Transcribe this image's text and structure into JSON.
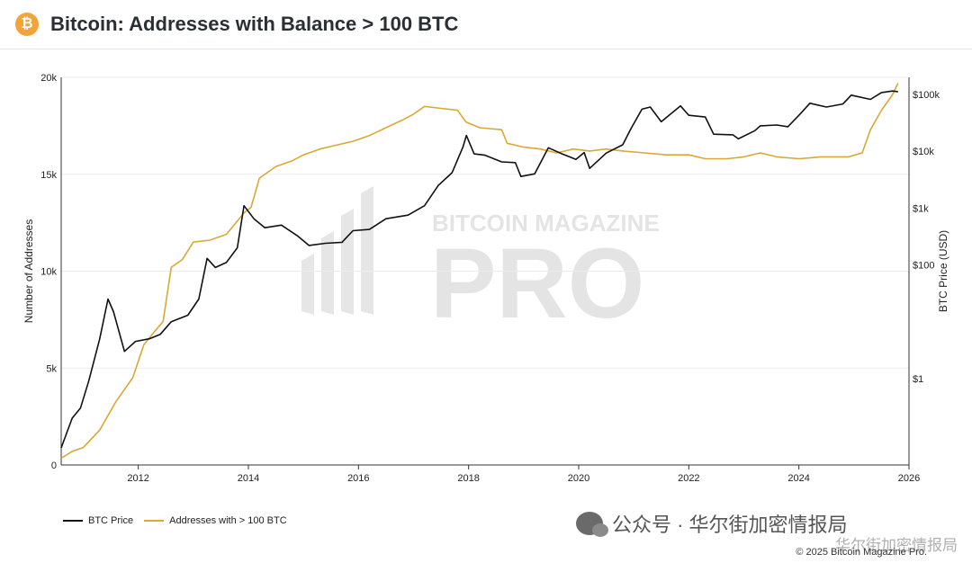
{
  "header": {
    "logo_symbol": "₿",
    "title": "Bitcoin: Addresses with Balance > 100 BTC"
  },
  "watermark": {
    "line1": "BITCOIN MAGAZINE",
    "line2": "PRO"
  },
  "footer": {
    "copyright": "© 2025 Bitcoin Magazine Pro.",
    "wechat_text": "公众号 · 华尔街加密情报局",
    "wechat_text_small": "华尔街加密情报局"
  },
  "chart_data": {
    "type": "line",
    "title": "Bitcoin: Addresses with Balance > 100 BTC",
    "xlabel": "",
    "ylabel": "Number of Addresses",
    "y2label": "BTC Price (USD)",
    "xlim": [
      2010.6,
      2026.0
    ],
    "x_ticks": [
      "2012",
      "2014",
      "2016",
      "2018",
      "2020",
      "2022",
      "2024",
      "2026"
    ],
    "x_tick_values": [
      2012,
      2014,
      2016,
      2018,
      2020,
      2022,
      2024,
      2026
    ],
    "ylim": [
      0,
      20000
    ],
    "y_ticks": [
      "0",
      "5k",
      "10k",
      "15k",
      "20k"
    ],
    "y_tick_values": [
      0,
      5000,
      10000,
      15000,
      20000
    ],
    "y2_scale": "log",
    "y2_ticks": [
      "$1",
      "$100",
      "$1k",
      "$10k",
      "$100k"
    ],
    "y2_tick_values": [
      1,
      100,
      1000,
      10000,
      100000
    ],
    "y2lim": [
      0.03,
      200000
    ],
    "grid": true,
    "legend_position": "bottom-left",
    "series": [
      {
        "name": "BTC Price",
        "axis": "right",
        "color": "#111111",
        "points": [
          [
            2010.6,
            0.06
          ],
          [
            2010.8,
            0.2
          ],
          [
            2010.95,
            0.3
          ],
          [
            2011.1,
            0.9
          ],
          [
            2011.3,
            5
          ],
          [
            2011.45,
            25
          ],
          [
            2011.55,
            15
          ],
          [
            2011.75,
            3
          ],
          [
            2011.95,
            4.5
          ],
          [
            2012.2,
            5
          ],
          [
            2012.4,
            6
          ],
          [
            2012.6,
            10
          ],
          [
            2012.9,
            13
          ],
          [
            2013.1,
            25
          ],
          [
            2013.25,
            130
          ],
          [
            2013.4,
            90
          ],
          [
            2013.6,
            110
          ],
          [
            2013.8,
            200
          ],
          [
            2013.92,
            1100
          ],
          [
            2014.1,
            650
          ],
          [
            2014.3,
            450
          ],
          [
            2014.6,
            500
          ],
          [
            2014.9,
            320
          ],
          [
            2015.1,
            220
          ],
          [
            2015.4,
            240
          ],
          [
            2015.7,
            250
          ],
          [
            2015.9,
            400
          ],
          [
            2016.2,
            420
          ],
          [
            2016.5,
            650
          ],
          [
            2016.9,
            750
          ],
          [
            2017.2,
            1100
          ],
          [
            2017.45,
            2500
          ],
          [
            2017.7,
            4200
          ],
          [
            2017.9,
            12000
          ],
          [
            2017.96,
            19000
          ],
          [
            2018.1,
            9000
          ],
          [
            2018.3,
            8500
          ],
          [
            2018.6,
            6500
          ],
          [
            2018.85,
            6300
          ],
          [
            2018.95,
            3600
          ],
          [
            2019.2,
            4000
          ],
          [
            2019.45,
            11500
          ],
          [
            2019.7,
            9000
          ],
          [
            2019.95,
            7200
          ],
          [
            2020.1,
            9500
          ],
          [
            2020.2,
            5000
          ],
          [
            2020.5,
            9300
          ],
          [
            2020.8,
            13000
          ],
          [
            2020.95,
            25000
          ],
          [
            2021.15,
            55000
          ],
          [
            2021.3,
            60000
          ],
          [
            2021.5,
            33000
          ],
          [
            2021.85,
            63000
          ],
          [
            2022.0,
            43000
          ],
          [
            2022.3,
            40000
          ],
          [
            2022.45,
            20000
          ],
          [
            2022.8,
            19500
          ],
          [
            2022.9,
            16500
          ],
          [
            2023.2,
            23000
          ],
          [
            2023.3,
            28000
          ],
          [
            2023.6,
            29000
          ],
          [
            2023.8,
            27000
          ],
          [
            2024.0,
            43000
          ],
          [
            2024.2,
            70000
          ],
          [
            2024.5,
            60000
          ],
          [
            2024.8,
            68000
          ],
          [
            2024.95,
            97000
          ],
          [
            2025.3,
            82000
          ],
          [
            2025.5,
            108000
          ],
          [
            2025.7,
            115000
          ],
          [
            2025.8,
            112000
          ]
        ]
      },
      {
        "name": "Addresses with > 100 BTC",
        "axis": "left",
        "color": "#d9a836",
        "points": [
          [
            2010.6,
            350
          ],
          [
            2010.8,
            700
          ],
          [
            2011.0,
            900
          ],
          [
            2011.3,
            1800
          ],
          [
            2011.6,
            3300
          ],
          [
            2011.9,
            4500
          ],
          [
            2012.1,
            6200
          ],
          [
            2012.3,
            6900
          ],
          [
            2012.45,
            7400
          ],
          [
            2012.6,
            10200
          ],
          [
            2012.8,
            10600
          ],
          [
            2013.0,
            11500
          ],
          [
            2013.3,
            11600
          ],
          [
            2013.6,
            11900
          ],
          [
            2013.92,
            13000
          ],
          [
            2014.05,
            13300
          ],
          [
            2014.2,
            14800
          ],
          [
            2014.5,
            15400
          ],
          [
            2014.8,
            15700
          ],
          [
            2015.0,
            16000
          ],
          [
            2015.3,
            16300
          ],
          [
            2015.6,
            16500
          ],
          [
            2015.9,
            16700
          ],
          [
            2016.2,
            17000
          ],
          [
            2016.5,
            17400
          ],
          [
            2016.8,
            17800
          ],
          [
            2017.0,
            18100
          ],
          [
            2017.2,
            18500
          ],
          [
            2017.5,
            18400
          ],
          [
            2017.8,
            18300
          ],
          [
            2017.95,
            17700
          ],
          [
            2018.2,
            17400
          ],
          [
            2018.6,
            17300
          ],
          [
            2018.7,
            16600
          ],
          [
            2019.0,
            16400
          ],
          [
            2019.3,
            16300
          ],
          [
            2019.6,
            16100
          ],
          [
            2019.9,
            16300
          ],
          [
            2020.2,
            16200
          ],
          [
            2020.5,
            16300
          ],
          [
            2020.8,
            16200
          ],
          [
            2021.2,
            16100
          ],
          [
            2021.6,
            16000
          ],
          [
            2022.0,
            16000
          ],
          [
            2022.3,
            15800
          ],
          [
            2022.7,
            15800
          ],
          [
            2023.0,
            15900
          ],
          [
            2023.3,
            16100
          ],
          [
            2023.6,
            15900
          ],
          [
            2024.0,
            15800
          ],
          [
            2024.4,
            15900
          ],
          [
            2024.9,
            15900
          ],
          [
            2025.15,
            16100
          ],
          [
            2025.3,
            17300
          ],
          [
            2025.5,
            18300
          ],
          [
            2025.7,
            19100
          ],
          [
            2025.8,
            19700
          ]
        ]
      }
    ]
  }
}
